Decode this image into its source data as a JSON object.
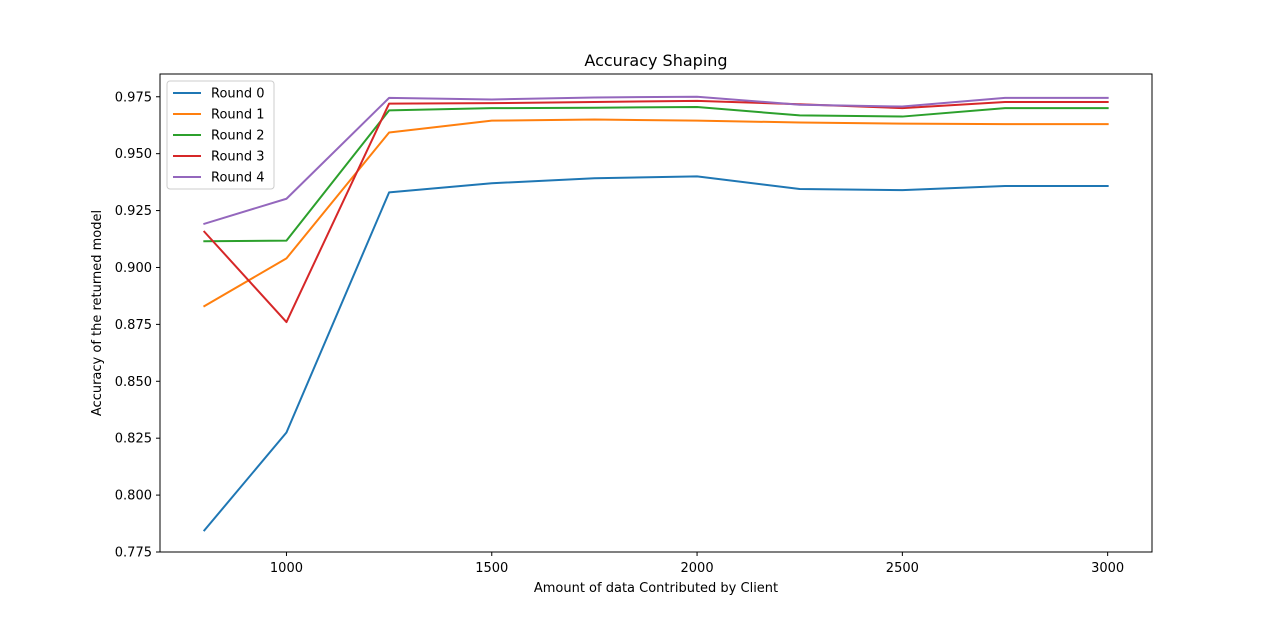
{
  "chart_data": {
    "type": "line",
    "title": "Accuracy Shaping",
    "xlabel": "Amount of data Contributed by Client",
    "ylabel": "Accuracy of the returned model",
    "x": [
      800,
      1000,
      1250,
      1500,
      1750,
      2000,
      2250,
      2500,
      2750,
      3000
    ],
    "xlim": [
      692,
      3108
    ],
    "ylim": [
      0.775,
      0.985
    ],
    "xticks": [
      1000,
      1500,
      2000,
      2500,
      3000
    ],
    "xtick_labels": [
      "1000",
      "1500",
      "2000",
      "2500",
      "3000"
    ],
    "yticks": [
      0.775,
      0.8,
      0.825,
      0.85,
      0.875,
      0.9,
      0.925,
      0.95,
      0.975
    ],
    "ytick_labels": [
      "0.775",
      "0.800",
      "0.825",
      "0.850",
      "0.875",
      "0.900",
      "0.925",
      "0.950",
      "0.975"
    ],
    "grid": false,
    "legend_position": "upper-left",
    "series": [
      {
        "name": "Round 0",
        "color": "#1f77b4",
        "values": [
          0.7845,
          0.8275,
          0.933,
          0.937,
          0.9392,
          0.94,
          0.9345,
          0.934,
          0.9358,
          0.9358
        ]
      },
      {
        "name": "Round 1",
        "color": "#ff7f0e",
        "values": [
          0.883,
          0.904,
          0.9593,
          0.9645,
          0.965,
          0.9645,
          0.9637,
          0.9632,
          0.963,
          0.963
        ]
      },
      {
        "name": "Round 2",
        "color": "#2ca02c",
        "values": [
          0.9115,
          0.9118,
          0.969,
          0.97,
          0.9702,
          0.9705,
          0.9668,
          0.9663,
          0.97,
          0.97
        ]
      },
      {
        "name": "Round 3",
        "color": "#d62728",
        "values": [
          0.9157,
          0.876,
          0.972,
          0.9722,
          0.9727,
          0.9732,
          0.9717,
          0.97,
          0.9727,
          0.9727
        ]
      },
      {
        "name": "Round 4",
        "color": "#9467bd",
        "values": [
          0.9192,
          0.9302,
          0.9745,
          0.9738,
          0.9747,
          0.975,
          0.9715,
          0.9707,
          0.9745,
          0.9745
        ]
      }
    ]
  }
}
